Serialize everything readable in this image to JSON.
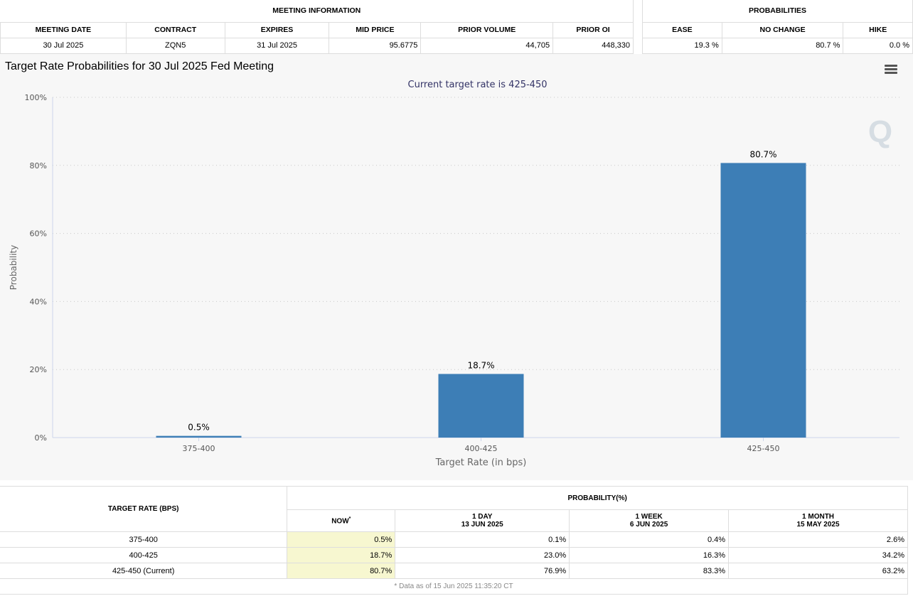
{
  "meeting": {
    "group_label": "MEETING INFORMATION",
    "headers": [
      "MEETING DATE",
      "CONTRACT",
      "EXPIRES",
      "MID PRICE",
      "PRIOR VOLUME",
      "PRIOR OI"
    ],
    "values": [
      "30 Jul 2025",
      "ZQN5",
      "31 Jul 2025",
      "95.6775",
      "44,705",
      "448,330"
    ]
  },
  "probabilities": {
    "group_label": "PROBABILITIES",
    "headers": [
      "EASE",
      "NO CHANGE",
      "HIKE"
    ],
    "values": [
      "19.3 %",
      "80.7 %",
      "0.0 %"
    ]
  },
  "chart_title": "Target Rate Probabilities for 30 Jul 2025 Fed Meeting",
  "chart_data": {
    "type": "bar",
    "subtitle": "Current target rate is 425-450",
    "categories": [
      "375-400",
      "400-425",
      "425-450"
    ],
    "values": [
      0.5,
      18.7,
      80.7
    ],
    "data_labels": [
      "0.5%",
      "18.7%",
      "80.7%"
    ],
    "xlabel": "Target Rate (in bps)",
    "ylabel": "Probability",
    "ylim": [
      0,
      100
    ],
    "yticks": [
      0,
      20,
      40,
      60,
      80,
      100
    ],
    "ytick_labels": [
      "0%",
      "20%",
      "40%",
      "60%",
      "80%",
      "100%"
    ],
    "grid": true,
    "bar_color": "#3d7eb6"
  },
  "history": {
    "target_header": "TARGET RATE (BPS)",
    "prob_header": "PROBABILITY(%)",
    "cols": [
      {
        "label": "NOW",
        "sup": "*",
        "sub": ""
      },
      {
        "label": "1 DAY",
        "sub": "13 JUN 2025"
      },
      {
        "label": "1 WEEK",
        "sub": "6 JUN 2025"
      },
      {
        "label": "1 MONTH",
        "sub": "15 MAY 2025"
      }
    ],
    "rows": [
      {
        "rate": "375-400",
        "values": [
          "0.5%",
          "0.1%",
          "0.4%",
          "2.6%"
        ]
      },
      {
        "rate": "400-425",
        "values": [
          "18.7%",
          "23.0%",
          "16.3%",
          "34.2%"
        ]
      },
      {
        "rate": "425-450 (Current)",
        "values": [
          "80.7%",
          "76.9%",
          "83.3%",
          "63.2%"
        ]
      }
    ],
    "footnote": "* Data as of 15 Jun 2025 11:35:20 CT"
  }
}
